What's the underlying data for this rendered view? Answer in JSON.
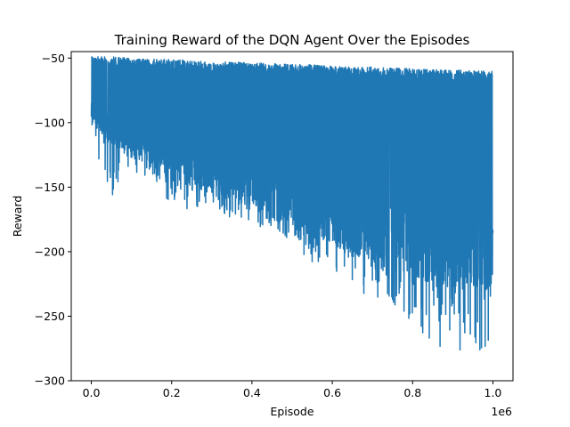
{
  "chart_data": {
    "type": "line",
    "title": "Training Reward of the DQN Agent Over the Episodes",
    "xlabel": "Episode",
    "ylabel": "Reward",
    "x_offset_label": "1e6",
    "xlim": [
      -0.05,
      1.05
    ],
    "ylim": [
      -300,
      -45
    ],
    "x_ticks": [
      0.0,
      0.2,
      0.4,
      0.6,
      0.8,
      1.0
    ],
    "x_tick_labels": [
      "0.0",
      "0.2",
      "0.4",
      "0.6",
      "0.8",
      "1.0"
    ],
    "y_ticks": [
      -50,
      -100,
      -150,
      -200,
      -250,
      -300
    ],
    "y_tick_labels": [
      "−50",
      "−100",
      "−150",
      "−200",
      "−250",
      "−300"
    ],
    "grid": false,
    "series": [
      {
        "color": "#1f77b4",
        "x": [
          0.0,
          0.05,
          0.1,
          0.15,
          0.2,
          0.25,
          0.3,
          0.35,
          0.4,
          0.45,
          0.5,
          0.55,
          0.6,
          0.65,
          0.7,
          0.75,
          0.8,
          0.85,
          0.9,
          0.95,
          1.0
        ],
        "upper": [
          -57,
          -57,
          -58,
          -59,
          -59,
          -60,
          -61,
          -61,
          -62,
          -62,
          -63,
          -63,
          -64,
          -65,
          -65,
          -66,
          -66,
          -67,
          -67,
          -68,
          -68
        ],
        "lower": [
          -120,
          -158,
          -145,
          -140,
          -165,
          -168,
          -163,
          -175,
          -180,
          -182,
          -192,
          -210,
          -215,
          -230,
          -235,
          -240,
          -258,
          -275,
          -272,
          -288,
          -268
        ],
        "dense_lower": [
          -100,
          -118,
          -128,
          -135,
          -145,
          -150,
          -155,
          -162,
          -168,
          -175,
          -182,
          -188,
          -195,
          -202,
          -210,
          -215,
          -220,
          -225,
          -228,
          -232,
          -230
        ]
      }
    ]
  }
}
